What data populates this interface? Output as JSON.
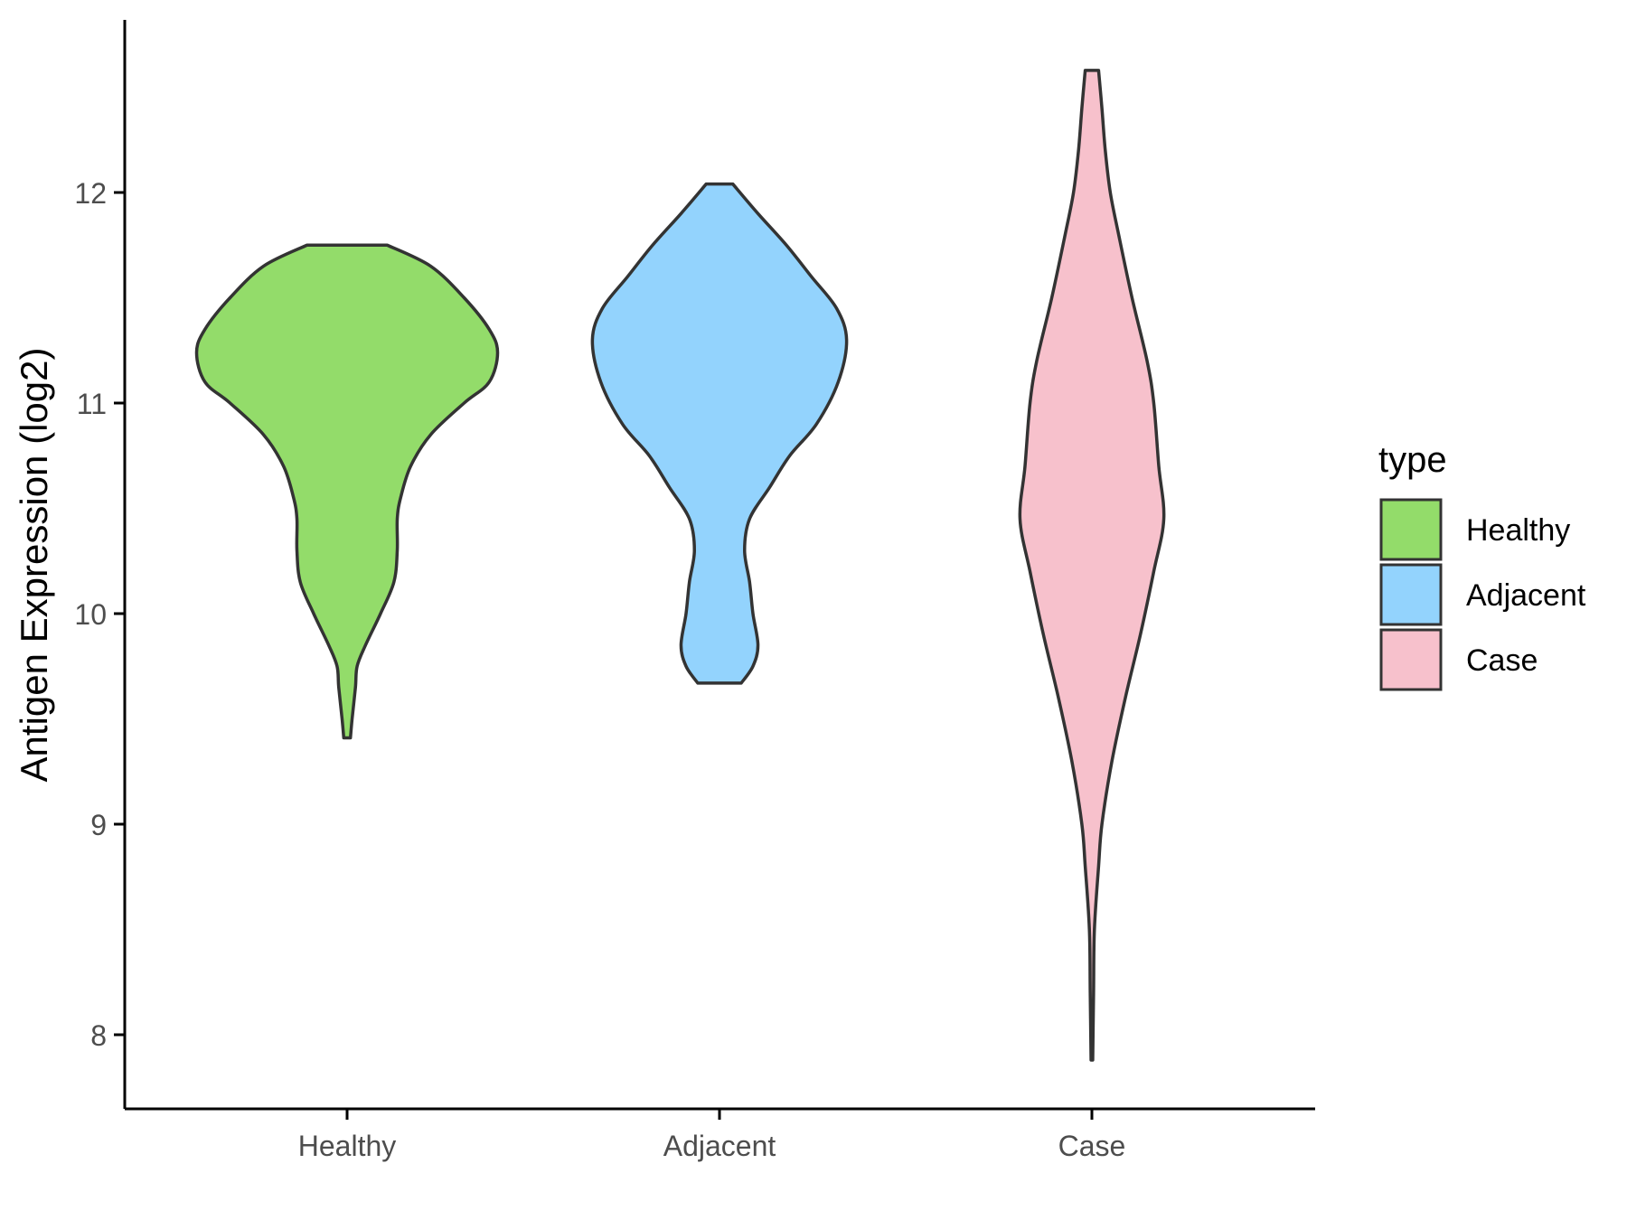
{
  "chart_data": {
    "type": "violin",
    "title": "",
    "xlabel": "",
    "ylabel": "Antigen Expression (log2)",
    "categories": [
      "Healthy",
      "Adjacent",
      "Case"
    ],
    "ylim": [
      7.65,
      12.85
    ],
    "y_ticks": [
      8,
      9,
      10,
      11,
      12
    ],
    "y_tick_labels": [
      "8",
      "9",
      "10",
      "11",
      "12"
    ],
    "grid": false,
    "legend": {
      "title": "type",
      "position": "right",
      "entries": [
        "Healthy",
        "Adjacent",
        "Case"
      ]
    },
    "colors": {
      "Healthy": "#93dc6a",
      "Adjacent": "#93d3fd",
      "Case": "#f7c1cc",
      "outline": "#333333",
      "axis": "#000000"
    },
    "series": [
      {
        "name": "Healthy",
        "range": [
          9.41,
          11.75
        ],
        "profile": [
          [
            9.41,
            0.02
          ],
          [
            9.5,
            0.03
          ],
          [
            9.65,
            0.05
          ],
          [
            9.75,
            0.06
          ],
          [
            9.85,
            0.11
          ],
          [
            10.0,
            0.2
          ],
          [
            10.15,
            0.28
          ],
          [
            10.3,
            0.3
          ],
          [
            10.45,
            0.3
          ],
          [
            10.55,
            0.32
          ],
          [
            10.7,
            0.38
          ],
          [
            10.85,
            0.5
          ],
          [
            11.0,
            0.7
          ],
          [
            11.1,
            0.85
          ],
          [
            11.24,
            0.9
          ],
          [
            11.35,
            0.85
          ],
          [
            11.5,
            0.7
          ],
          [
            11.65,
            0.5
          ],
          [
            11.75,
            0.24
          ]
        ]
      },
      {
        "name": "Adjacent",
        "range": [
          9.67,
          12.04
        ],
        "profile": [
          [
            9.67,
            0.13
          ],
          [
            9.75,
            0.2
          ],
          [
            9.85,
            0.23
          ],
          [
            10.0,
            0.2
          ],
          [
            10.15,
            0.18
          ],
          [
            10.3,
            0.15
          ],
          [
            10.45,
            0.18
          ],
          [
            10.6,
            0.3
          ],
          [
            10.75,
            0.42
          ],
          [
            10.9,
            0.58
          ],
          [
            11.1,
            0.71
          ],
          [
            11.3,
            0.76
          ],
          [
            11.45,
            0.7
          ],
          [
            11.6,
            0.55
          ],
          [
            11.75,
            0.4
          ],
          [
            11.9,
            0.23
          ],
          [
            12.04,
            0.08
          ]
        ]
      },
      {
        "name": "Case",
        "range": [
          7.88,
          12.58
        ],
        "profile": [
          [
            7.88,
            0.005
          ],
          [
            8.2,
            0.01
          ],
          [
            8.5,
            0.015
          ],
          [
            8.8,
            0.04
          ],
          [
            9.0,
            0.06
          ],
          [
            9.3,
            0.12
          ],
          [
            9.6,
            0.2
          ],
          [
            9.9,
            0.29
          ],
          [
            10.2,
            0.37
          ],
          [
            10.45,
            0.43
          ],
          [
            10.7,
            0.4
          ],
          [
            11.0,
            0.37
          ],
          [
            11.2,
            0.33
          ],
          [
            11.5,
            0.24
          ],
          [
            11.8,
            0.16
          ],
          [
            12.0,
            0.11
          ],
          [
            12.2,
            0.08
          ],
          [
            12.4,
            0.06
          ],
          [
            12.58,
            0.04
          ]
        ]
      }
    ]
  }
}
